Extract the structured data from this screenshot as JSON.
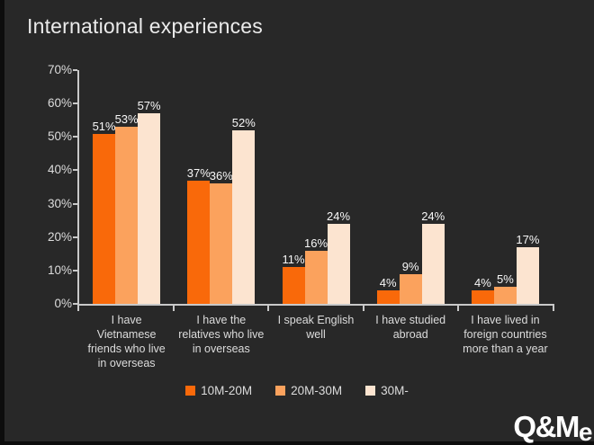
{
  "title": "International experiences",
  "logo": {
    "text": "Q&Me"
  },
  "colors": {
    "background": "#282828",
    "axis": "#c9c9c9",
    "muted_text": "#dcdcdc",
    "data_label_text": "#f7f7f7",
    "title_text": "#ebebeb"
  },
  "chart_data": {
    "type": "bar",
    "title": "International experiences",
    "categories": [
      "I have Vietnamese friends who live in overseas",
      "I have the relatives who live in overseas",
      "I speak English well",
      "I have studied abroad",
      "I have lived in foreign countries more than a year"
    ],
    "series": [
      {
        "name": "10M-20M",
        "color": "#f9690a",
        "values": [
          51,
          37,
          11,
          4,
          4
        ]
      },
      {
        "name": "20M-30M",
        "color": "#fba25d",
        "values": [
          53,
          36,
          16,
          9,
          5
        ]
      },
      {
        "name": "30M-",
        "color": "#fce4d0",
        "values": [
          57,
          52,
          24,
          24,
          17
        ]
      }
    ],
    "value_suffix": "%",
    "ylim": [
      0,
      70
    ],
    "y_tick_labels": [
      "70%",
      "60%",
      "50%",
      "40%",
      "30%",
      "20%",
      "10%",
      "0%"
    ],
    "grid": false,
    "data_labels": "outside-end",
    "legend_position": "bottom"
  }
}
